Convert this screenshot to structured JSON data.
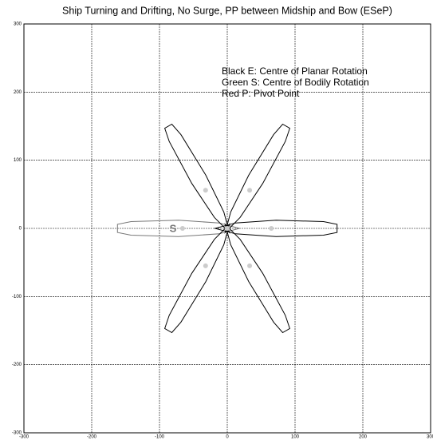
{
  "chart_data": {
    "type": "scatter",
    "title": "Ship Turning and Drifting, No Surge, PP between Midship and Bow (ESeP)",
    "annotations": [
      "Black E:  Centre of Planar Rotation",
      "Green S:  Centre of Bodily Rotation",
      "Red P:     Pivot Point"
    ],
    "markers": [
      {
        "text": "S",
        "x": -80,
        "y": 0
      }
    ],
    "x": [
      -66,
      65,
      -32,
      33,
      -32,
      33,
      0
    ],
    "y": [
      0,
      0,
      56,
      56,
      -55,
      -55,
      0
    ],
    "color": "#cccccc",
    "ships": [
      {
        "x": -72,
        "y": 0,
        "heading": 180,
        "color": "#777777"
      },
      {
        "x": 72,
        "y": 0,
        "heading": 0,
        "color": "#000000"
      },
      {
        "x": 42,
        "y": 72,
        "heading": 60,
        "color": "#000000"
      },
      {
        "x": -42,
        "y": 72,
        "heading": 120,
        "color": "#000000"
      },
      {
        "x": -42,
        "y": -72,
        "heading": 240,
        "color": "#000000"
      },
      {
        "x": 42,
        "y": -72,
        "heading": 300,
        "color": "#000000"
      }
    ],
    "hull_outline": [
      [
        -90,
        0
      ],
      [
        -60,
        -8
      ],
      [
        0,
        -12
      ],
      [
        70,
        -10
      ],
      [
        90,
        -6
      ],
      [
        90,
        6
      ],
      [
        70,
        10
      ],
      [
        0,
        12
      ],
      [
        -60,
        8
      ]
    ],
    "xlim": [
      -300,
      300
    ],
    "ylim": [
      -300,
      300
    ],
    "xticks": [
      -300,
      -200,
      -100,
      0,
      100,
      200,
      300
    ],
    "yticks": [
      -300,
      -200,
      -100,
      0,
      100,
      200,
      300
    ],
    "grid": true
  }
}
